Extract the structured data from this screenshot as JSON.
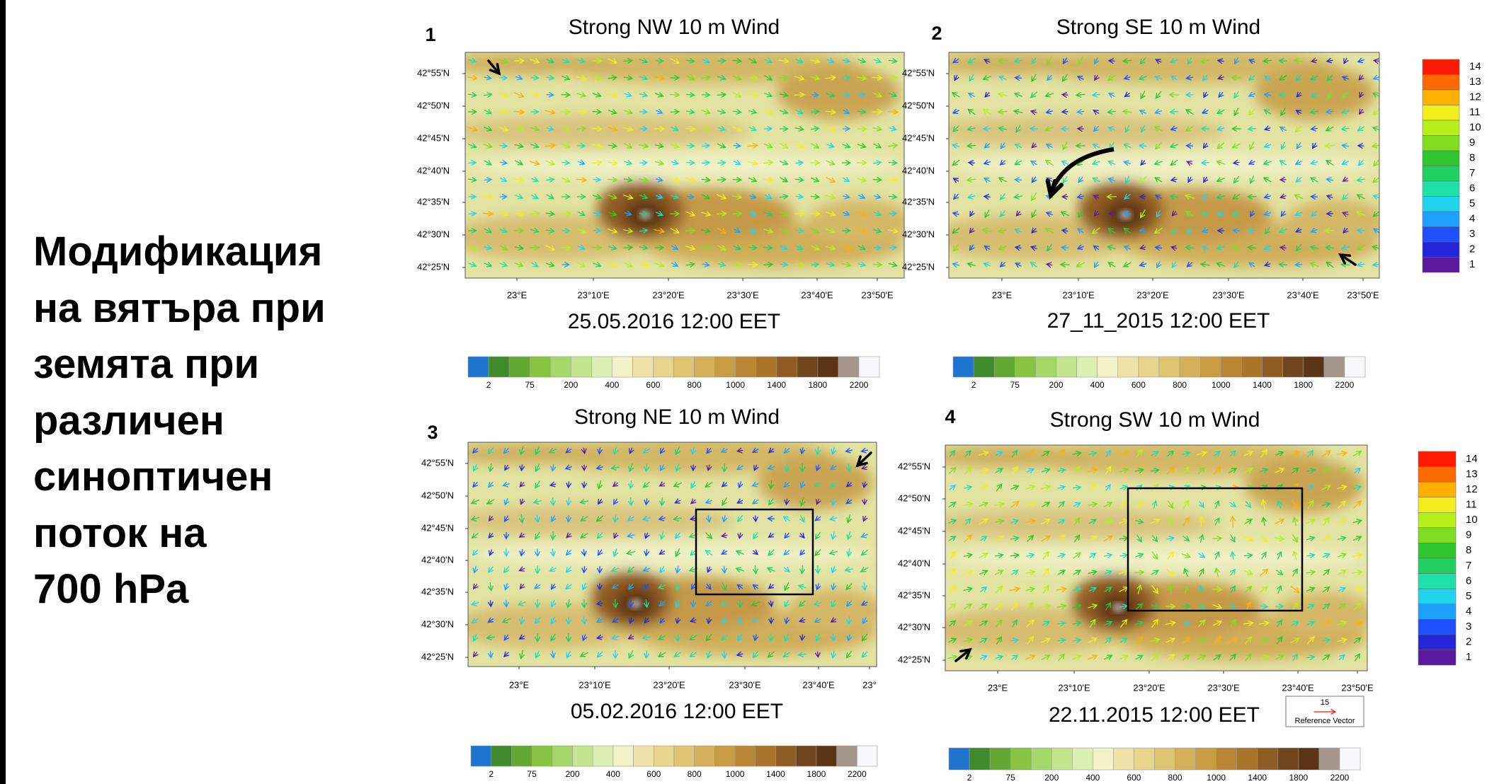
{
  "slide_title": [
    "Модификация",
    "на вятъра при",
    "земята при",
    "различен",
    "синоптичен",
    "поток на",
    "700 hPa"
  ],
  "panels": [
    {
      "number": "1",
      "title": "Strong NW 10 m Wind",
      "date": "25.05.2016 12:00 EET",
      "lat_labels": [
        "42°55'N",
        "42°50'N",
        "42°45'N",
        "42°40'N",
        "42°35'N",
        "42°30'N",
        "42°25'N"
      ],
      "lon_labels": [
        "23°E",
        "23°10'E",
        "23°20'E",
        "23°30'E",
        "23°40'E",
        "23°50'E"
      ],
      "elevation_labels": [
        2,
        75,
        200,
        400,
        600,
        800,
        1000,
        1400,
        1800,
        2200
      ]
    },
    {
      "number": "2",
      "title": "Strong SE 10 m Wind",
      "date": "27_11_2015 12:00 EET",
      "lat_labels": [
        "42°55'N",
        "42°50'N",
        "42°45'N",
        "42°40'N",
        "42°35'N",
        "42°30'N",
        "42°25'N"
      ],
      "lon_labels": [
        "23°E",
        "23°10'E",
        "23°20'E",
        "23°30'E",
        "23°40'E",
        "23°50'E"
      ],
      "elevation_labels": [
        2,
        75,
        200,
        400,
        600,
        800,
        1000,
        1400,
        1800,
        2200
      ]
    },
    {
      "number": "3",
      "title": "Strong NE 10 m Wind",
      "date": "05.02.2016 12:00 EET",
      "lat_labels": [
        "42°55'N",
        "42°50'N",
        "42°45'N",
        "42°40'N",
        "42°35'N",
        "42°30'N",
        "42°25'N"
      ],
      "lon_labels": [
        "23°E",
        "23°10'E",
        "23°20'E",
        "23°30'E",
        "23°40'E",
        "23°"
      ],
      "elevation_labels": [
        2,
        75,
        200,
        400,
        600,
        800,
        1000,
        1400,
        1800,
        2200
      ]
    },
    {
      "number": "4",
      "title": "Strong SW 10 m Wind",
      "date": "22.11.2015 12:00 EET",
      "lat_labels": [
        "42°55'N",
        "42°50'N",
        "42°45'N",
        "42°40'N",
        "42°35'N",
        "42°30'N",
        "42°25'N"
      ],
      "lon_labels": [
        "23°E",
        "23°10'E",
        "23°20'E",
        "23°30'E",
        "23°40'E",
        "23°50'E"
      ],
      "elevation_labels": [
        2,
        75,
        200,
        400,
        600,
        800,
        1000,
        1400,
        1800,
        2200
      ]
    }
  ],
  "wind_speed_scales": [
    {
      "labels": [
        14,
        13,
        12,
        11,
        10,
        9,
        8,
        7,
        6,
        5,
        4,
        3,
        2,
        1
      ]
    },
    {
      "labels": [
        14,
        13,
        12,
        11,
        10,
        9,
        8,
        7,
        6,
        5,
        4,
        3,
        2,
        1
      ]
    }
  ],
  "reference_vector": {
    "value": 15,
    "label": "Reference Vector"
  }
}
